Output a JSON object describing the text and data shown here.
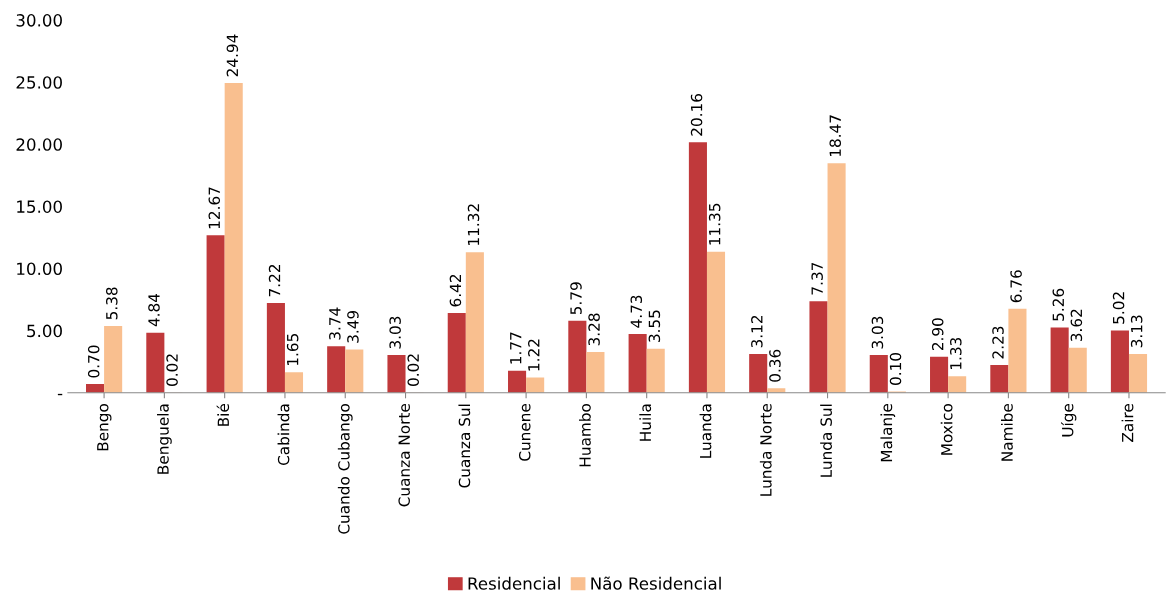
{
  "chart_data": {
    "type": "bar",
    "categories": [
      "Bengo",
      "Benguela",
      "Bié",
      "Cabinda",
      "Cuando Cubango",
      "Cuanza Norte",
      "Cuanza Sul",
      "Cunene",
      "Huambo",
      "Huila",
      "Luanda",
      "Lunda Norte",
      "Lunda Sul",
      "Malanje",
      "Moxico",
      "Namibe",
      "Uíge",
      "Zaire"
    ],
    "series": [
      {
        "name": "Residencial",
        "color": "#c0393b",
        "values": [
          0.7,
          4.84,
          12.67,
          7.22,
          3.74,
          3.03,
          6.42,
          1.77,
          5.79,
          4.73,
          20.16,
          3.12,
          7.37,
          3.03,
          2.9,
          2.23,
          5.26,
          5.02
        ],
        "value_labels": [
          "0.70",
          "4.84",
          "12.67",
          "7.22",
          "3.74",
          "3.03",
          "6.42",
          "1.77",
          "5.79",
          "4.73",
          "20.16",
          "3.12",
          "7.37",
          "3.03",
          "2.90",
          "2.23",
          "5.26",
          "5.02"
        ]
      },
      {
        "name": "Não Residencial",
        "color": "#f9bf8f",
        "values": [
          5.38,
          0.02,
          24.94,
          1.65,
          3.49,
          0.02,
          11.32,
          1.22,
          3.28,
          3.55,
          11.35,
          0.36,
          18.47,
          0.1,
          1.33,
          6.76,
          3.62,
          3.13
        ],
        "value_labels": [
          "5.38",
          "0.02",
          "24.94",
          "1.65",
          "3.49",
          "0.02",
          "11.32",
          "1.22",
          "3.28",
          "3.55",
          "11.35",
          "0.36",
          "18.47",
          "0.10",
          "1.33",
          "6.76",
          "3.62",
          "3.13"
        ]
      }
    ],
    "ylim": [
      0,
      30
    ],
    "yticks": [
      {
        "value": 0,
        "label": "-"
      },
      {
        "value": 5,
        "label": "5.00"
      },
      {
        "value": 10,
        "label": "10.00"
      },
      {
        "value": 15,
        "label": "15.00"
      },
      {
        "value": 20,
        "label": "20.00"
      },
      {
        "value": 25,
        "label": "25.00"
      },
      {
        "value": 30,
        "label": "30.00"
      }
    ],
    "grid": false,
    "legend": "bottom"
  }
}
